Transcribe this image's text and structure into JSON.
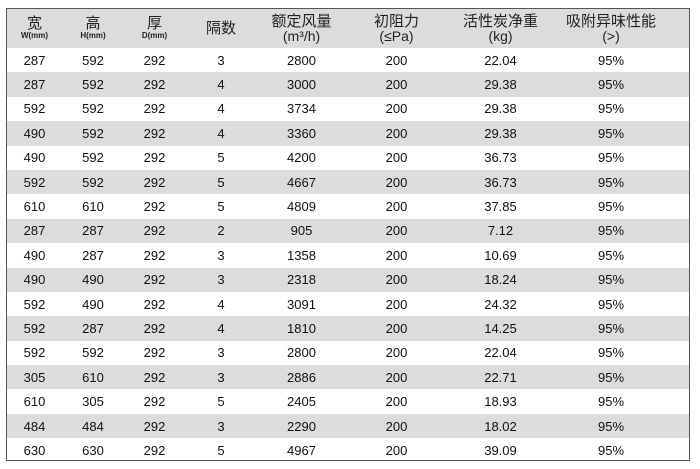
{
  "headers": [
    {
      "main": "宽",
      "sub": "W(mm)"
    },
    {
      "main": "高",
      "sub": "H(mm)"
    },
    {
      "main": "厚",
      "sub": "D(mm)"
    },
    {
      "main": "隔数",
      "sub": ""
    },
    {
      "main": "额定风量",
      "unit": "(m³/h)"
    },
    {
      "main": "初阻力",
      "unit": "(≤Pa)"
    },
    {
      "main": "活性炭净重",
      "unit": "(kg)"
    },
    {
      "main": "吸附异味性能",
      "unit": "(>)"
    }
  ],
  "rows": [
    [
      "287",
      "592",
      "292",
      "3",
      "2800",
      "200",
      "22.04",
      "95%"
    ],
    [
      "287",
      "592",
      "292",
      "4",
      "3000",
      "200",
      "29.38",
      "95%"
    ],
    [
      "592",
      "592",
      "292",
      "4",
      "3734",
      "200",
      "29.38",
      "95%"
    ],
    [
      "490",
      "592",
      "292",
      "4",
      "3360",
      "200",
      "29.38",
      "95%"
    ],
    [
      "490",
      "592",
      "292",
      "5",
      "4200",
      "200",
      "36.73",
      "95%"
    ],
    [
      "592",
      "592",
      "292",
      "5",
      "4667",
      "200",
      "36.73",
      "95%"
    ],
    [
      "610",
      "610",
      "292",
      "5",
      "4809",
      "200",
      "37.85",
      "95%"
    ],
    [
      "287",
      "287",
      "292",
      "2",
      "905",
      "200",
      "7.12",
      "95%"
    ],
    [
      "490",
      "287",
      "292",
      "3",
      "1358",
      "200",
      "10.69",
      "95%"
    ],
    [
      "490",
      "490",
      "292",
      "3",
      "2318",
      "200",
      "18.24",
      "95%"
    ],
    [
      "592",
      "490",
      "292",
      "4",
      "3091",
      "200",
      "24.32",
      "95%"
    ],
    [
      "592",
      "287",
      "292",
      "4",
      "1810",
      "200",
      "14.25",
      "95%"
    ],
    [
      "592",
      "592",
      "292",
      "3",
      "2800",
      "200",
      "22.04",
      "95%"
    ],
    [
      "305",
      "610",
      "292",
      "3",
      "2886",
      "200",
      "22.71",
      "95%"
    ],
    [
      "610",
      "305",
      "292",
      "5",
      "2405",
      "200",
      "18.93",
      "95%"
    ],
    [
      "484",
      "484",
      "292",
      "3",
      "2290",
      "200",
      "18.02",
      "95%"
    ],
    [
      "630",
      "630",
      "292",
      "5",
      "4967",
      "200",
      "39.09",
      "95%"
    ]
  ]
}
